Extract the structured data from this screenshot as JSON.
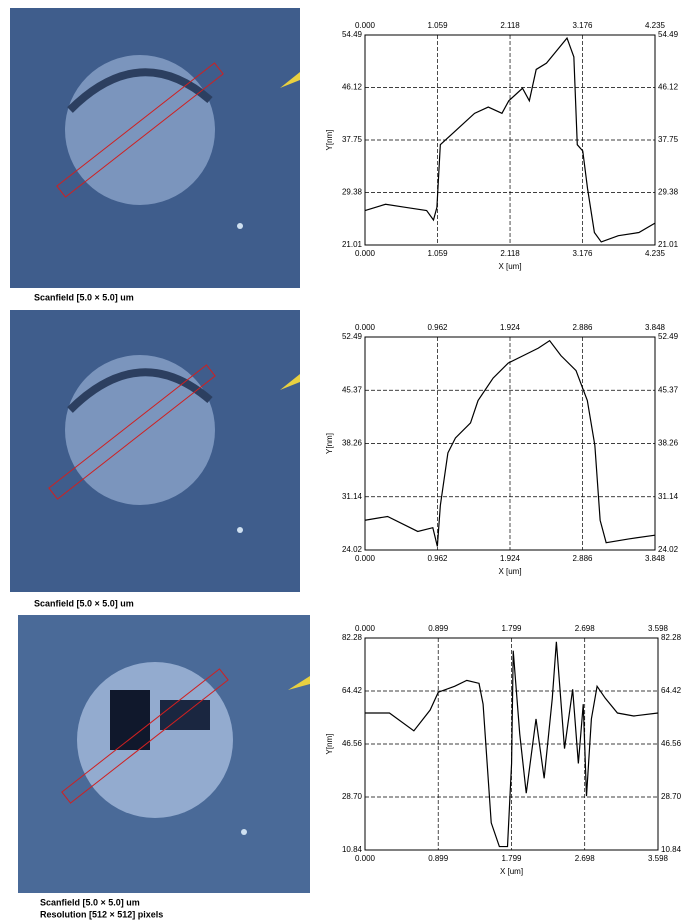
{
  "captions": [
    [
      "Scanfield [5.0 × 5.0] um"
    ],
    [
      "Scanfield [5.0 × 5.0] um"
    ],
    [
      "Scanfield [5.0 × 5.0] um",
      "Resolution [512 × 512] pixels"
    ]
  ],
  "chart_data": [
    {
      "type": "line",
      "x_label": "X [um]",
      "y_label": "Y[nm]",
      "grid": true,
      "xlim": [
        0,
        4.235
      ],
      "ylim": [
        21.01,
        54.49
      ],
      "xticks": [
        {
          "value": 0,
          "label": "0.000"
        },
        1.059,
        2.118,
        3.176,
        4.235
      ],
      "yticks": [
        21.01,
        29.38,
        37.75,
        46.12,
        54.49
      ],
      "x": [
        0,
        0.3,
        0.6,
        0.9,
        1.0,
        1.05,
        1.1,
        1.3,
        1.6,
        1.8,
        2.0,
        2.1,
        2.3,
        2.4,
        2.5,
        2.65,
        2.8,
        2.95,
        3.05,
        3.1,
        3.18,
        3.25,
        3.35,
        3.45,
        3.7,
        4.0,
        4.235
      ],
      "series": [
        {
          "color": "#000000",
          "values": [
            26.5,
            27.5,
            27,
            26.5,
            25,
            27,
            37,
            39,
            42,
            43,
            42,
            44,
            46,
            44,
            49,
            50,
            52,
            54,
            51,
            37,
            36,
            30,
            23,
            21.5,
            22.5,
            23,
            24.5
          ]
        }
      ]
    },
    {
      "type": "line",
      "x_label": "X [um]",
      "y_label": "Y[nm]",
      "grid": true,
      "xlim": [
        0,
        3.848
      ],
      "ylim": [
        24.02,
        52.49
      ],
      "xticks": [
        {
          "value": 0,
          "label": "0.000"
        },
        0.962,
        1.924,
        2.886,
        3.848
      ],
      "yticks": [
        24.02,
        31.14,
        38.26,
        45.37,
        52.49
      ],
      "x": [
        0,
        0.3,
        0.7,
        0.9,
        0.96,
        1.0,
        1.1,
        1.2,
        1.4,
        1.5,
        1.7,
        1.9,
        2.1,
        2.3,
        2.45,
        2.6,
        2.8,
        2.95,
        3.05,
        3.12,
        3.2,
        3.5,
        3.848
      ],
      "series": [
        {
          "color": "#000000",
          "values": [
            28,
            28.5,
            26.5,
            27,
            24.5,
            30,
            37,
            39,
            41,
            44,
            47,
            49,
            50,
            51,
            52,
            50,
            48,
            44,
            38,
            28,
            25,
            25.5,
            26
          ]
        }
      ]
    },
    {
      "type": "line",
      "x_label": "X [um]",
      "y_label": "Y[nm]",
      "grid": true,
      "xlim": [
        0,
        3.598
      ],
      "ylim": [
        10.84,
        82.28
      ],
      "xticks": [
        {
          "value": 0,
          "label": "0.000"
        },
        0.899,
        1.799,
        2.698,
        3.598
      ],
      "yticks": [
        10.84,
        {
          "value": 28.7,
          "label": "28.70"
        },
        46.56,
        64.42,
        82.28
      ],
      "x": [
        0,
        0.3,
        0.6,
        0.8,
        0.9,
        1.1,
        1.25,
        1.4,
        1.45,
        1.55,
        1.65,
        1.75,
        1.8,
        1.82,
        1.9,
        1.98,
        2.1,
        2.2,
        2.3,
        2.35,
        2.45,
        2.55,
        2.62,
        2.68,
        2.72,
        2.78,
        2.85,
        2.95,
        3.1,
        3.3,
        3.598
      ],
      "series": [
        {
          "color": "#000000",
          "values": [
            57,
            57,
            51,
            58,
            64,
            66,
            68,
            67,
            60,
            20,
            12,
            12,
            40,
            78,
            50,
            30,
            55,
            35,
            62,
            81,
            45,
            65,
            40,
            60,
            29,
            55,
            66,
            62,
            57,
            56,
            57
          ]
        }
      ]
    }
  ]
}
